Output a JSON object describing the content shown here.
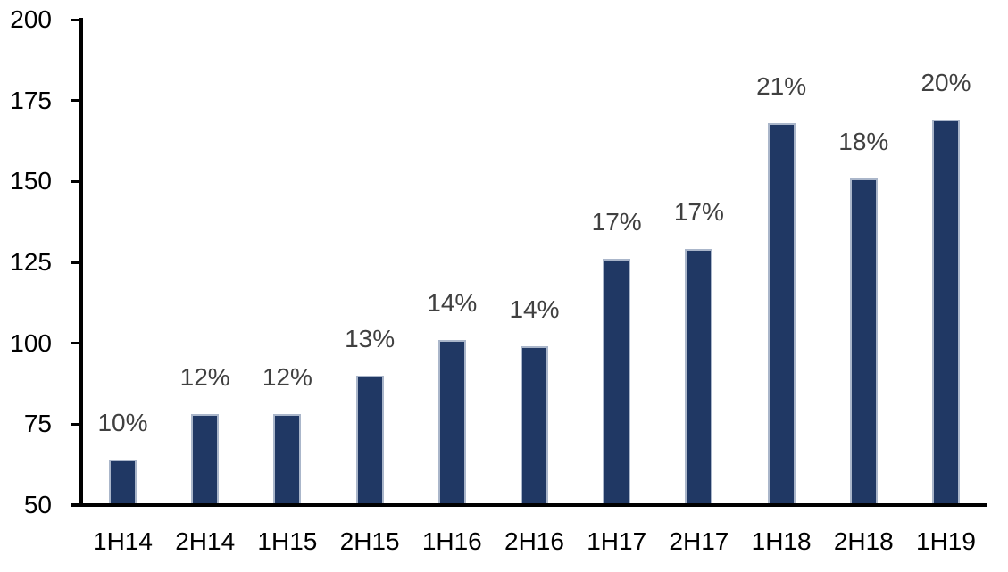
{
  "chart_data": {
    "type": "bar",
    "title": "",
    "xlabel": "",
    "ylabel": "",
    "categories": [
      "1H14",
      "2H14",
      "1H15",
      "2H15",
      "1H16",
      "2H16",
      "1H17",
      "2H17",
      "1H18",
      "2H18",
      "1H19"
    ],
    "values": [
      64,
      78,
      78,
      90,
      101,
      99,
      126,
      129,
      168,
      151,
      169
    ],
    "bar_labels": [
      "10%",
      "12%",
      "12%",
      "13%",
      "14%",
      "14%",
      "17%",
      "17%",
      "21%",
      "18%",
      "20%"
    ],
    "ylim": [
      50,
      200
    ],
    "yticks": [
      50,
      75,
      100,
      125,
      150,
      175,
      200
    ],
    "grid": false,
    "legend": "none",
    "colors": {
      "bar_fill": "#203864",
      "bar_border": "#aab6ca",
      "data_label": "#404040",
      "axis": "#000000",
      "tick_label": "#000000",
      "background": "#ffffff"
    }
  }
}
